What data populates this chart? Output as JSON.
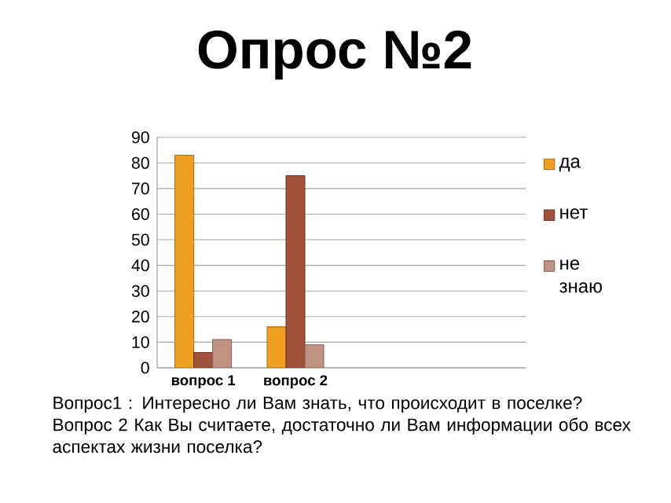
{
  "chart_data": {
    "type": "bar",
    "title": "Опрос №2",
    "categories": [
      "вопрос 1",
      "вопрос 2",
      null,
      null
    ],
    "series": [
      {
        "name": "да",
        "color": "#f0a020",
        "values": [
          83,
          16,
          null,
          null
        ]
      },
      {
        "name": "нет",
        "color": "#a0523a",
        "values": [
          6,
          75,
          null,
          null
        ]
      },
      {
        "name": "не знаю",
        "color": "#c09080",
        "values": [
          11,
          9,
          null,
          null
        ]
      }
    ],
    "ylim": [
      0,
      90
    ],
    "yticks": [
      0,
      10,
      20,
      30,
      40,
      50,
      60,
      70,
      80,
      90
    ],
    "grid": "y",
    "legend": "right",
    "annotations": [
      "Вопрос1 : Интересно ли Вам знать, что происходит в поселке?",
      "Вопрос 2 Как Вы считаете, достаточно ли Вам информации обо всех аспектах жизни поселка?"
    ]
  }
}
